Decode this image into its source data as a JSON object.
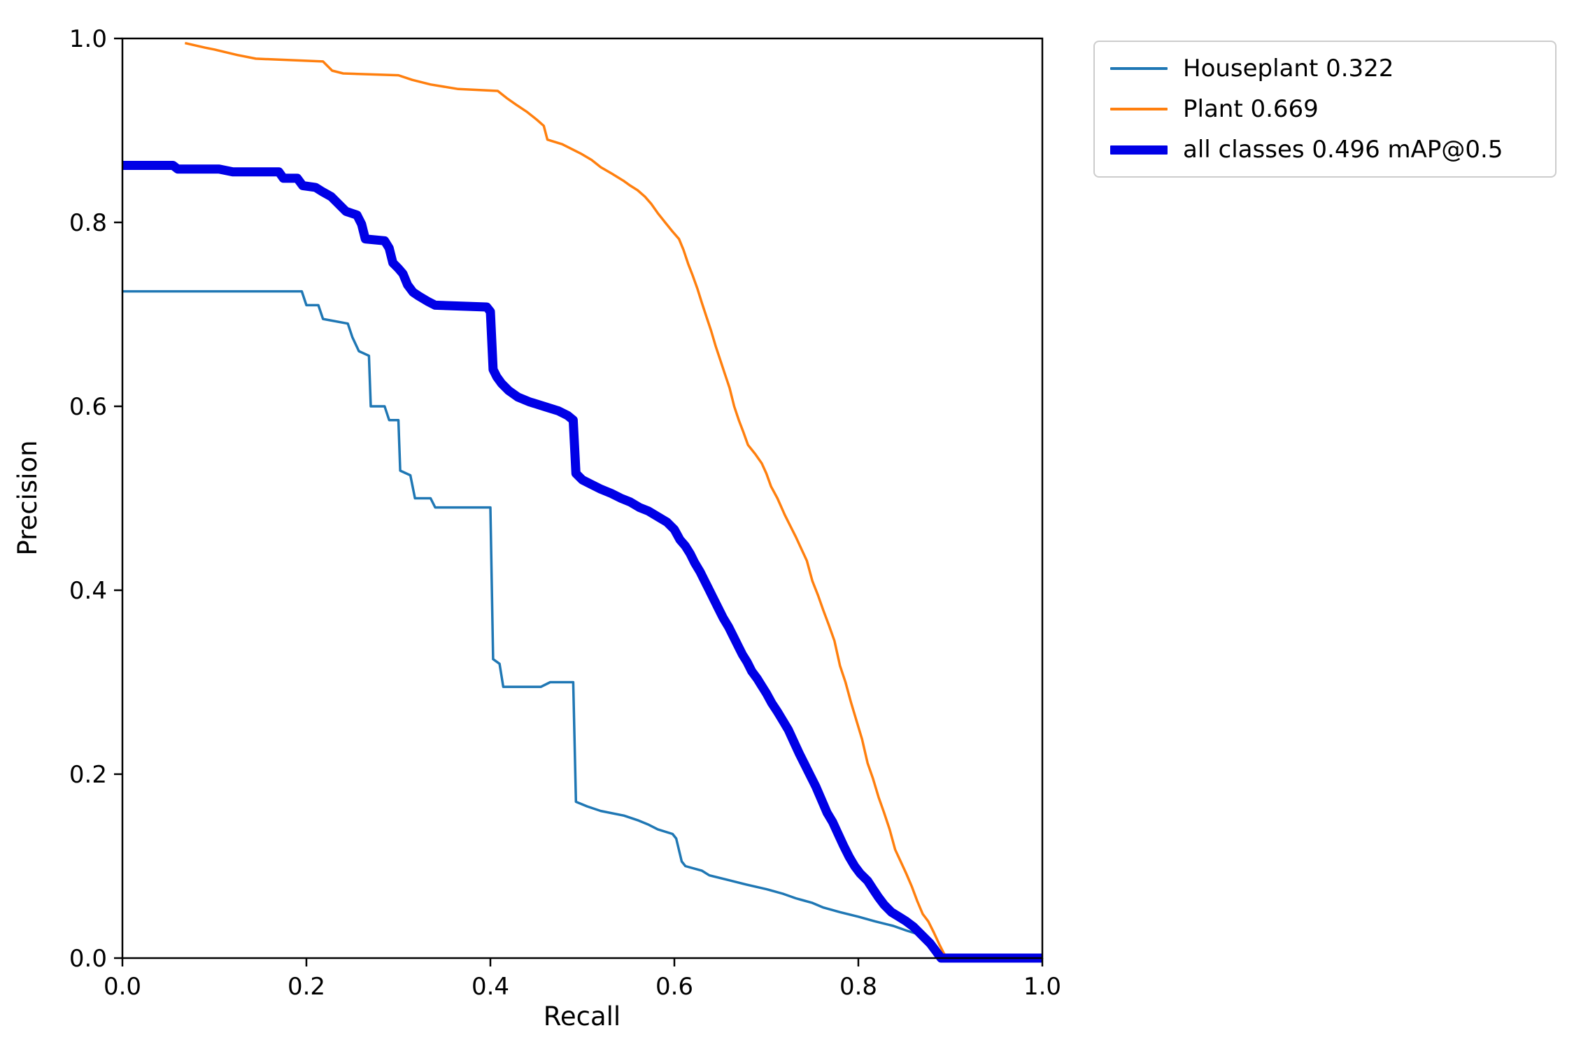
{
  "figure": {
    "background": "#ffffff"
  },
  "chart_data": {
    "type": "line",
    "title": "",
    "xlabel": "Recall",
    "ylabel": "Precision",
    "xlim": [
      0,
      1
    ],
    "ylim": [
      0,
      1
    ],
    "xticks": [
      "0.0",
      "0.2",
      "0.4",
      "0.6",
      "0.8",
      "1.0"
    ],
    "yticks": [
      "0.0",
      "0.2",
      "0.4",
      "0.6",
      "0.8",
      "1.0"
    ],
    "grid": false,
    "legend_position": "upper-right-outside",
    "axes_box": true,
    "description": "Precision-Recall curves at IoU 0.5",
    "series": [
      {
        "name": "Houseplant 0.322",
        "color": "#1f77b4",
        "linewidth": 3.5,
        "points": [
          [
            0.0,
            0.725
          ],
          [
            0.195,
            0.725
          ],
          [
            0.2,
            0.71
          ],
          [
            0.213,
            0.71
          ],
          [
            0.218,
            0.695
          ],
          [
            0.245,
            0.69
          ],
          [
            0.25,
            0.675
          ],
          [
            0.257,
            0.66
          ],
          [
            0.268,
            0.655
          ],
          [
            0.27,
            0.6
          ],
          [
            0.285,
            0.6
          ],
          [
            0.29,
            0.585
          ],
          [
            0.3,
            0.585
          ],
          [
            0.302,
            0.53
          ],
          [
            0.313,
            0.525
          ],
          [
            0.318,
            0.5
          ],
          [
            0.335,
            0.5
          ],
          [
            0.34,
            0.49
          ],
          [
            0.4,
            0.49
          ],
          [
            0.403,
            0.325
          ],
          [
            0.41,
            0.32
          ],
          [
            0.414,
            0.295
          ],
          [
            0.455,
            0.295
          ],
          [
            0.465,
            0.3
          ],
          [
            0.49,
            0.3
          ],
          [
            0.493,
            0.17
          ],
          [
            0.505,
            0.165
          ],
          [
            0.52,
            0.16
          ],
          [
            0.545,
            0.155
          ],
          [
            0.56,
            0.15
          ],
          [
            0.572,
            0.145
          ],
          [
            0.582,
            0.14
          ],
          [
            0.598,
            0.135
          ],
          [
            0.602,
            0.13
          ],
          [
            0.608,
            0.105
          ],
          [
            0.612,
            0.1
          ],
          [
            0.63,
            0.095
          ],
          [
            0.638,
            0.09
          ],
          [
            0.658,
            0.085
          ],
          [
            0.678,
            0.08
          ],
          [
            0.7,
            0.075
          ],
          [
            0.718,
            0.07
          ],
          [
            0.732,
            0.065
          ],
          [
            0.75,
            0.06
          ],
          [
            0.762,
            0.055
          ],
          [
            0.78,
            0.05
          ],
          [
            0.8,
            0.045
          ],
          [
            0.818,
            0.04
          ],
          [
            0.838,
            0.035
          ],
          [
            0.852,
            0.03
          ],
          [
            0.868,
            0.025
          ],
          [
            0.875,
            0.02
          ],
          [
            0.88,
            0.012
          ],
          [
            0.885,
            0.0
          ]
        ]
      },
      {
        "name": "Plant 0.669",
        "color": "#ff7f0e",
        "linewidth": 3.5,
        "points": [
          [
            0.068,
            0.995
          ],
          [
            0.09,
            0.99
          ],
          [
            0.1,
            0.988
          ],
          [
            0.125,
            0.982
          ],
          [
            0.145,
            0.978
          ],
          [
            0.218,
            0.975
          ],
          [
            0.228,
            0.965
          ],
          [
            0.24,
            0.962
          ],
          [
            0.3,
            0.96
          ],
          [
            0.315,
            0.955
          ],
          [
            0.335,
            0.95
          ],
          [
            0.365,
            0.945
          ],
          [
            0.408,
            0.943
          ],
          [
            0.418,
            0.935
          ],
          [
            0.428,
            0.928
          ],
          [
            0.44,
            0.92
          ],
          [
            0.45,
            0.912
          ],
          [
            0.458,
            0.905
          ],
          [
            0.462,
            0.89
          ],
          [
            0.478,
            0.885
          ],
          [
            0.498,
            0.875
          ],
          [
            0.51,
            0.868
          ],
          [
            0.52,
            0.86
          ],
          [
            0.532,
            0.853
          ],
          [
            0.545,
            0.845
          ],
          [
            0.552,
            0.84
          ],
          [
            0.56,
            0.835
          ],
          [
            0.568,
            0.828
          ],
          [
            0.575,
            0.82
          ],
          [
            0.582,
            0.81
          ],
          [
            0.59,
            0.8
          ],
          [
            0.598,
            0.79
          ],
          [
            0.605,
            0.782
          ],
          [
            0.61,
            0.77
          ],
          [
            0.615,
            0.755
          ],
          [
            0.62,
            0.742
          ],
          [
            0.625,
            0.728
          ],
          [
            0.63,
            0.712
          ],
          [
            0.635,
            0.697
          ],
          [
            0.64,
            0.682
          ],
          [
            0.645,
            0.665
          ],
          [
            0.65,
            0.65
          ],
          [
            0.655,
            0.635
          ],
          [
            0.66,
            0.62
          ],
          [
            0.665,
            0.6
          ],
          [
            0.67,
            0.585
          ],
          [
            0.675,
            0.572
          ],
          [
            0.68,
            0.558
          ],
          [
            0.688,
            0.548
          ],
          [
            0.695,
            0.538
          ],
          [
            0.7,
            0.527
          ],
          [
            0.705,
            0.513
          ],
          [
            0.712,
            0.5
          ],
          [
            0.72,
            0.482
          ],
          [
            0.726,
            0.47
          ],
          [
            0.732,
            0.458
          ],
          [
            0.738,
            0.445
          ],
          [
            0.744,
            0.432
          ],
          [
            0.75,
            0.41
          ],
          [
            0.756,
            0.395
          ],
          [
            0.762,
            0.378
          ],
          [
            0.768,
            0.362
          ],
          [
            0.774,
            0.345
          ],
          [
            0.78,
            0.318
          ],
          [
            0.786,
            0.3
          ],
          [
            0.792,
            0.278
          ],
          [
            0.798,
            0.258
          ],
          [
            0.804,
            0.238
          ],
          [
            0.81,
            0.212
          ],
          [
            0.816,
            0.195
          ],
          [
            0.822,
            0.175
          ],
          [
            0.828,
            0.158
          ],
          [
            0.834,
            0.14
          ],
          [
            0.84,
            0.118
          ],
          [
            0.846,
            0.105
          ],
          [
            0.852,
            0.092
          ],
          [
            0.858,
            0.078
          ],
          [
            0.864,
            0.062
          ],
          [
            0.87,
            0.048
          ],
          [
            0.876,
            0.04
          ],
          [
            0.882,
            0.028
          ],
          [
            0.888,
            0.015
          ],
          [
            0.893,
            0.005
          ],
          [
            0.897,
            0.0
          ]
        ]
      },
      {
        "name": "all classes 0.496 mAP@0.5",
        "color": "#0000e6",
        "linewidth": 13,
        "points": [
          [
            0.0,
            0.862
          ],
          [
            0.055,
            0.862
          ],
          [
            0.06,
            0.858
          ],
          [
            0.105,
            0.858
          ],
          [
            0.12,
            0.855
          ],
          [
            0.17,
            0.855
          ],
          [
            0.175,
            0.848
          ],
          [
            0.19,
            0.848
          ],
          [
            0.196,
            0.84
          ],
          [
            0.21,
            0.838
          ],
          [
            0.218,
            0.833
          ],
          [
            0.227,
            0.828
          ],
          [
            0.235,
            0.82
          ],
          [
            0.243,
            0.812
          ],
          [
            0.255,
            0.808
          ],
          [
            0.26,
            0.798
          ],
          [
            0.264,
            0.782
          ],
          [
            0.285,
            0.78
          ],
          [
            0.29,
            0.772
          ],
          [
            0.294,
            0.756
          ],
          [
            0.3,
            0.75
          ],
          [
            0.305,
            0.744
          ],
          [
            0.31,
            0.732
          ],
          [
            0.316,
            0.724
          ],
          [
            0.322,
            0.72
          ],
          [
            0.332,
            0.714
          ],
          [
            0.34,
            0.71
          ],
          [
            0.396,
            0.708
          ],
          [
            0.4,
            0.703
          ],
          [
            0.403,
            0.64
          ],
          [
            0.407,
            0.632
          ],
          [
            0.412,
            0.625
          ],
          [
            0.42,
            0.617
          ],
          [
            0.43,
            0.61
          ],
          [
            0.442,
            0.605
          ],
          [
            0.458,
            0.6
          ],
          [
            0.474,
            0.595
          ],
          [
            0.484,
            0.59
          ],
          [
            0.49,
            0.585
          ],
          [
            0.493,
            0.527
          ],
          [
            0.5,
            0.52
          ],
          [
            0.51,
            0.515
          ],
          [
            0.52,
            0.51
          ],
          [
            0.532,
            0.505
          ],
          [
            0.542,
            0.5
          ],
          [
            0.552,
            0.496
          ],
          [
            0.562,
            0.49
          ],
          [
            0.572,
            0.486
          ],
          [
            0.582,
            0.48
          ],
          [
            0.592,
            0.474
          ],
          [
            0.6,
            0.466
          ],
          [
            0.606,
            0.455
          ],
          [
            0.612,
            0.448
          ],
          [
            0.617,
            0.44
          ],
          [
            0.622,
            0.43
          ],
          [
            0.628,
            0.42
          ],
          [
            0.633,
            0.41
          ],
          [
            0.638,
            0.4
          ],
          [
            0.643,
            0.39
          ],
          [
            0.648,
            0.38
          ],
          [
            0.653,
            0.37
          ],
          [
            0.659,
            0.36
          ],
          [
            0.664,
            0.35
          ],
          [
            0.669,
            0.34
          ],
          [
            0.674,
            0.33
          ],
          [
            0.679,
            0.322
          ],
          [
            0.684,
            0.312
          ],
          [
            0.69,
            0.304
          ],
          [
            0.695,
            0.296
          ],
          [
            0.7,
            0.288
          ],
          [
            0.706,
            0.277
          ],
          [
            0.712,
            0.268
          ],
          [
            0.718,
            0.258
          ],
          [
            0.724,
            0.248
          ],
          [
            0.73,
            0.235
          ],
          [
            0.736,
            0.222
          ],
          [
            0.742,
            0.21
          ],
          [
            0.748,
            0.198
          ],
          [
            0.754,
            0.186
          ],
          [
            0.76,
            0.172
          ],
          [
            0.766,
            0.158
          ],
          [
            0.772,
            0.148
          ],
          [
            0.778,
            0.135
          ],
          [
            0.784,
            0.122
          ],
          [
            0.79,
            0.11
          ],
          [
            0.796,
            0.1
          ],
          [
            0.802,
            0.092
          ],
          [
            0.81,
            0.084
          ],
          [
            0.816,
            0.075
          ],
          [
            0.822,
            0.066
          ],
          [
            0.828,
            0.058
          ],
          [
            0.836,
            0.05
          ],
          [
            0.844,
            0.045
          ],
          [
            0.852,
            0.04
          ],
          [
            0.86,
            0.034
          ],
          [
            0.866,
            0.028
          ],
          [
            0.872,
            0.022
          ],
          [
            0.878,
            0.016
          ],
          [
            0.884,
            0.008
          ],
          [
            0.89,
            0.0
          ],
          [
            1.0,
            0.0
          ]
        ]
      }
    ]
  }
}
